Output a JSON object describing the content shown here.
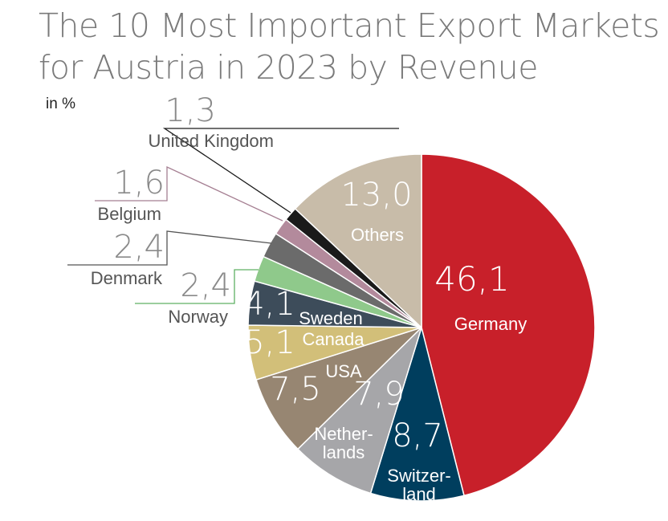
{
  "title_lines": [
    "The 10 Most Important Export Markets",
    "for Austria in 2023 by Revenue"
  ],
  "unit": "in %",
  "chart_data": {
    "type": "pie",
    "title": "The 10 Most Important Export Markets for Austria in 2023 by Revenue",
    "unit": "in %",
    "slices": [
      {
        "label": "Germany",
        "value": 46.1,
        "value_text": "46,1",
        "color": "#c8202a"
      },
      {
        "label": "Switzer-\nland",
        "value": 8.7,
        "value_text": "8,7",
        "color": "#003e5e"
      },
      {
        "label": "Nether-\nlands",
        "value": 7.9,
        "value_text": "7,9",
        "color": "#a6a6a9"
      },
      {
        "label": "USA",
        "value": 7.5,
        "value_text": "7,5",
        "color": "#978672"
      },
      {
        "label": "Canada",
        "value": 5.1,
        "value_text": "5,1",
        "color": "#d2bf79"
      },
      {
        "label": "Sweden",
        "value": 4.1,
        "value_text": "4,1",
        "color": "#3d4c5a"
      },
      {
        "label": "Norway",
        "value": 2.4,
        "value_text": "2,4",
        "color": "#8fc98b",
        "label_color": "#555555",
        "leader": "#5fb163"
      },
      {
        "label": "Denmark",
        "value": 2.4,
        "value_text": "2,4",
        "color": "#6b6b6b",
        "label_color": "#555555",
        "leader": "#555555"
      },
      {
        "label": "Belgium",
        "value": 1.6,
        "value_text": "1,6",
        "color": "#b38a9c",
        "label_color": "#555555",
        "leader": "#a57f92"
      },
      {
        "label": "United Kingdom",
        "value": 1.3,
        "value_text": "1,3",
        "color": "#1a1a1a",
        "label_color": "#555555",
        "leader": "#1a1a1a"
      },
      {
        "label": "Others",
        "value": 13.0,
        "value_text": "13,0",
        "color": "#c8bca9"
      }
    ]
  }
}
